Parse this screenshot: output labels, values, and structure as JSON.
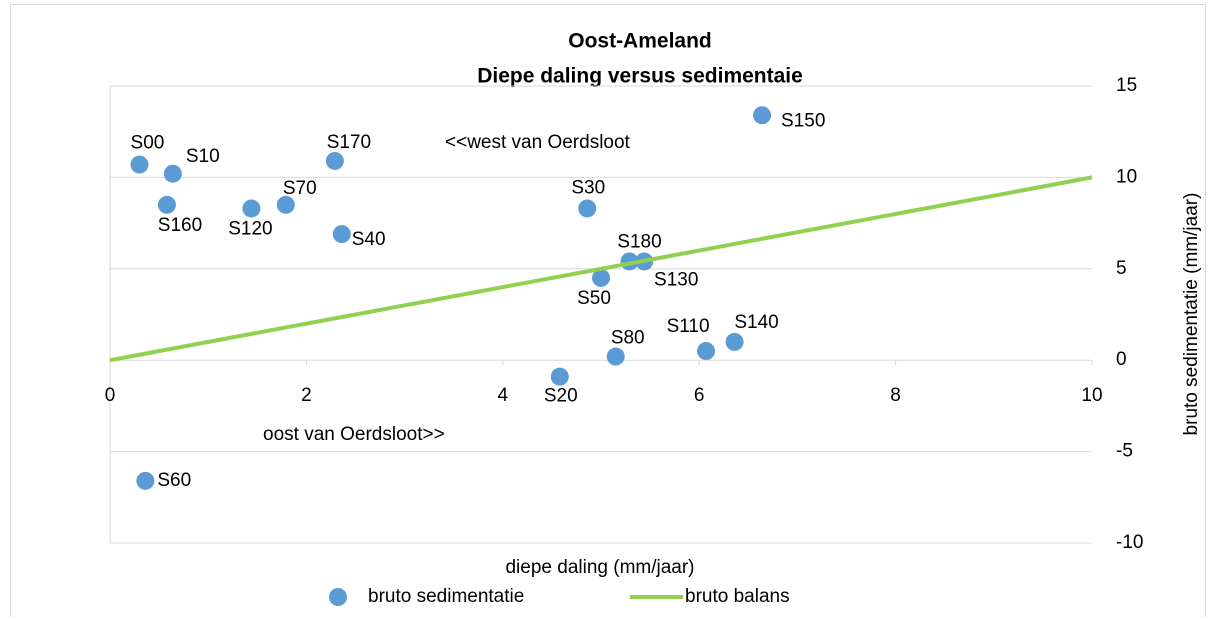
{
  "chart_data": {
    "type": "scatter",
    "title": "Oost-Ameland",
    "subtitle": "Diepe daling versus sedimentaie",
    "x_label": "diepe daling (mm/jaar)",
    "y_label": "bruto sedimentatie (mm/jaar)",
    "annotations": [
      "<<west van Oerdsloot",
      "oost van Oerdsloot>>"
    ],
    "xlim": [
      0,
      10
    ],
    "xticks": [
      0,
      2,
      4,
      6,
      8,
      10
    ],
    "ylim": [
      -10,
      15
    ],
    "yticks": [
      -10,
      -5,
      0,
      5,
      10,
      15
    ],
    "grid": true,
    "legend": "bottom",
    "series": [
      {
        "name": "bruto sedimentatie",
        "type": "scatter",
        "color": "#5b9bd5",
        "x": [
          0.3,
          0.64,
          0.58,
          1.44,
          1.79,
          2.29,
          2.36,
          4.86,
          6.64,
          5.29,
          5.44,
          5.0,
          5.15,
          6.07,
          6.36,
          4.58,
          0.36
        ],
        "values": [
          10.7,
          10.2,
          8.5,
          8.3,
          8.5,
          10.9,
          6.9,
          8.3,
          13.4,
          5.4,
          5.4,
          4.5,
          0.2,
          0.5,
          1.0,
          -0.9,
          -6.6
        ],
        "labels": [
          "S00",
          "S10",
          "S160",
          "S120",
          "S70",
          "S170",
          "S40",
          "S30",
          "S150",
          "S180",
          "S130",
          "S50",
          "S80",
          "S110",
          "S140",
          "S20",
          "S60"
        ]
      },
      {
        "name": "bruto balans",
        "type": "line",
        "color": "#92d050",
        "x": [
          0,
          10
        ],
        "values": [
          0,
          10
        ]
      }
    ]
  }
}
